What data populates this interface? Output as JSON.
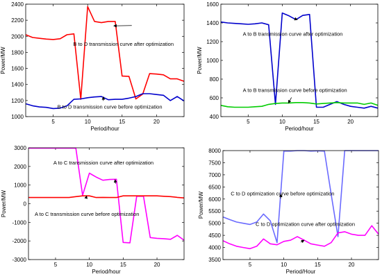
{
  "chart_data": [
    {
      "type": "line",
      "xlabel": "Period/hour",
      "ylabel": "Power/MW",
      "xlim": [
        1,
        24
      ],
      "ylim": [
        1000,
        2400
      ],
      "xticks": [
        5,
        10,
        15,
        20
      ],
      "yticks": [
        1000,
        1200,
        1400,
        1600,
        1800,
        2000,
        2200,
        2400
      ],
      "grid": false,
      "x": [
        1,
        2,
        3,
        4,
        5,
        6,
        7,
        8,
        9,
        10,
        11,
        12,
        13,
        14,
        15,
        16,
        17,
        18,
        19,
        20,
        21,
        22,
        23,
        24
      ],
      "series": [
        {
          "color": "#ff0000",
          "values": [
            2020,
            1985,
            1975,
            1965,
            1960,
            1970,
            2020,
            2030,
            1215,
            2370,
            2185,
            2170,
            2185,
            2185,
            1505,
            1500,
            1220,
            1280,
            1535,
            1530,
            1520,
            1470,
            1470,
            1440
          ]
        },
        {
          "color": "#0000cc",
          "values": [
            1160,
            1135,
            1120,
            1115,
            1100,
            1105,
            1135,
            1215,
            1220,
            1235,
            1245,
            1250,
            1210,
            1215,
            1215,
            1230,
            1250,
            1285,
            1285,
            1275,
            1265,
            1200,
            1250,
            1195
          ]
        }
      ],
      "annotations": [
        {
          "text": "B to D transmission curve after optimization",
          "series": 0,
          "point_x": 13.8,
          "point_y": 2130
        },
        {
          "text": "B to D transmission curve before optimization",
          "series": 1,
          "point_x": 12.3,
          "point_y": 1245
        }
      ]
    },
    {
      "type": "line",
      "xlabel": "Period/hour",
      "ylabel": "Power/MW",
      "xlim": [
        1,
        24
      ],
      "ylim": [
        400,
        1600
      ],
      "xticks": [
        5,
        10,
        15,
        20
      ],
      "yticks": [
        400,
        600,
        800,
        1000,
        1200,
        1400,
        1600
      ],
      "grid": false,
      "x": [
        1,
        2,
        3,
        4,
        5,
        6,
        7,
        8,
        9,
        10,
        11,
        12,
        13,
        14,
        15,
        16,
        17,
        18,
        19,
        20,
        21,
        22,
        23,
        24
      ],
      "series": [
        {
          "color": "#0000cc",
          "values": [
            1410,
            1400,
            1395,
            1390,
            1385,
            1390,
            1400,
            1380,
            530,
            1505,
            1475,
            1435,
            1480,
            1490,
            500,
            500,
            530,
            560,
            530,
            510,
            500,
            490,
            510,
            490
          ]
        },
        {
          "color": "#00cc00",
          "values": [
            520,
            505,
            500,
            500,
            500,
            505,
            510,
            530,
            540,
            545,
            545,
            550,
            550,
            545,
            535,
            540,
            545,
            550,
            545,
            545,
            545,
            530,
            545,
            520
          ]
        }
      ],
      "annotations": [
        {
          "text": "A to B transmission curve after optimization",
          "series": 0,
          "point_x": 12.2,
          "point_y": 1435
        },
        {
          "text": "A to B transmission curve before optimization",
          "series": 1,
          "point_x": 10.9,
          "point_y": 545
        }
      ]
    },
    {
      "type": "line",
      "xlabel": "Period/hour",
      "ylabel": "Power/MW",
      "xlim": [
        1,
        24
      ],
      "ylim": [
        -3000,
        3000
      ],
      "xticks": [
        5,
        10,
        15,
        20
      ],
      "yticks": [
        -3000,
        -2000,
        -1000,
        0,
        1000,
        2000,
        3000
      ],
      "grid": false,
      "x": [
        1,
        2,
        3,
        4,
        5,
        6,
        7,
        8,
        9,
        10,
        11,
        12,
        13,
        14,
        15,
        16,
        17,
        18,
        19,
        20,
        21,
        22,
        23,
        24
      ],
      "series": [
        {
          "color": "#ff00ff",
          "values": [
            2980,
            2980,
            2980,
            2980,
            2980,
            2980,
            2980,
            2980,
            450,
            1640,
            1430,
            1260,
            1300,
            1310,
            -2080,
            -2100,
            400,
            400,
            -1820,
            -1860,
            -1880,
            -1910,
            -1700,
            -1960
          ]
        },
        {
          "color": "#ff0000",
          "values": [
            330,
            330,
            330,
            330,
            330,
            330,
            330,
            380,
            420,
            420,
            330,
            340,
            330,
            330,
            420,
            420,
            420,
            420,
            420,
            420,
            400,
            380,
            340,
            310
          ]
        }
      ],
      "annotations": [
        {
          "text": "A to C transmission curve after optimization",
          "series": 0,
          "point_x": 13.8,
          "point_y": 1290
        },
        {
          "text": "A to C transmission curve before optimization",
          "series": 1,
          "point_x": 9.6,
          "point_y": 420
        }
      ]
    },
    {
      "type": "line",
      "xlabel": "Period/Hour",
      "ylabel": "Power/MW",
      "xlim": [
        1,
        24
      ],
      "ylim": [
        3500,
        8000
      ],
      "xticks": [
        5,
        10,
        15,
        20
      ],
      "yticks": [
        3500,
        4000,
        4500,
        5000,
        5500,
        6000,
        6500,
        7000,
        7500,
        8000
      ],
      "grid": false,
      "x": [
        1,
        2,
        3,
        4,
        5,
        6,
        7,
        8,
        9,
        10,
        11,
        12,
        13,
        14,
        15,
        16,
        17,
        18,
        19,
        20,
        21,
        22,
        23,
        24
      ],
      "series": [
        {
          "color": "#6a6aff",
          "values": [
            5260,
            5150,
            5050,
            5000,
            4950,
            5050,
            5380,
            5100,
            4200,
            7980,
            7980,
            8000,
            8000,
            7980,
            7990,
            7980,
            6200,
            4450,
            8000,
            8000,
            8000,
            8000,
            8000,
            8000
          ]
        },
        {
          "color": "#ff00ff",
          "values": [
            4280,
            4150,
            4050,
            4000,
            3950,
            4050,
            4350,
            4150,
            4110,
            4250,
            4300,
            4450,
            4300,
            4150,
            4100,
            4050,
            4200,
            4600,
            4650,
            4550,
            4500,
            4500,
            4900,
            4550
          ]
        }
      ],
      "annotations": [
        {
          "text": "C to D optimization curve before optimization",
          "series": 0,
          "point_x": 9.6,
          "point_y": 6200
        },
        {
          "text": "C to D optimization curve after optimization",
          "series": 1,
          "point_x": 13.0,
          "point_y": 4300
        }
      ]
    }
  ]
}
